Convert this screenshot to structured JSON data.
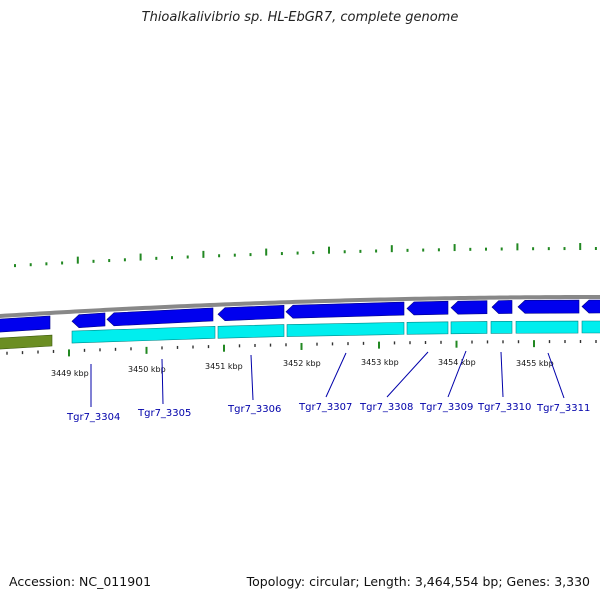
{
  "title": "Thioalkalivibrio sp. HL-EbGR7, complete genome",
  "accession_text": "Accession: NC_011901",
  "summary_text": "Topology: circular; Length: 3,464,554 bp; Genes: 3,330",
  "colors": {
    "backbone": "#888888",
    "forward_strand": "#0000ee",
    "reverse_strand": "#00eeee",
    "rna_or_other": "#6b8e23",
    "gc_ticks": "#228822",
    "gene_label": "#0000aa"
  },
  "kbp_ticks": [
    "3449 kbp",
    "3450 kbp",
    "3451 kbp",
    "3452 kbp",
    "3453 kbp",
    "3454 kbp",
    "3455 kbp"
  ],
  "gene_labels": [
    "Tgr7_3304",
    "Tgr7_3305",
    "Tgr7_3306",
    "Tgr7_3307",
    "Tgr7_3308",
    "Tgr7_3309",
    "Tgr7_3310",
    "Tgr7_3311"
  ]
}
